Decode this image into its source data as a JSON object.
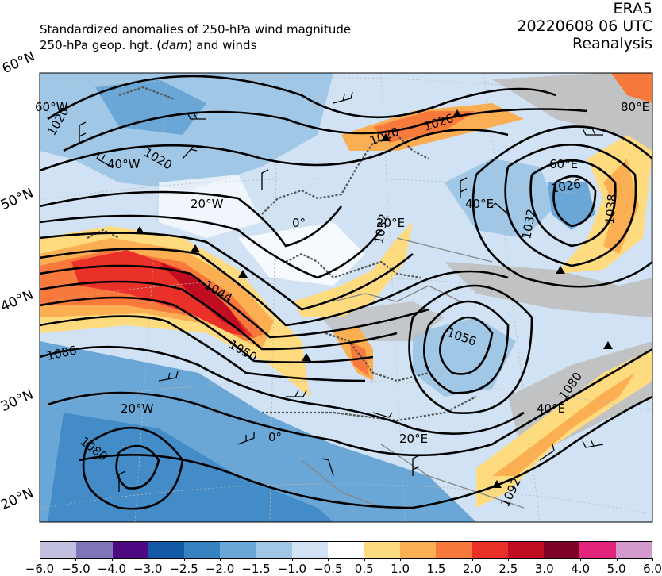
{
  "header": {
    "title_line1": "Standardized anomalies of 250-hPa wind magnitude",
    "title_line2_pre": "250-hPa geop. hgt. (",
    "title_line2_unit": "dam",
    "title_line2_post": ") and winds",
    "dataset": "ERA5",
    "datetime": "20220608 06 UTC",
    "product": "Reanalysis"
  },
  "map": {
    "lat_labels": [
      "60°N",
      "50°N",
      "40°N",
      "30°N",
      "20°N"
    ],
    "grid_labels": [
      "60°W",
      "40°W",
      "20°W",
      "0°",
      "20°E",
      "40°E",
      "60°E",
      "80°E",
      "20°W",
      "0°",
      "20°E",
      "40°E"
    ],
    "contour_labels": [
      "1020",
      "1026",
      "1020",
      "1020",
      "1026",
      "1032",
      "1038",
      "1032",
      "1044",
      "1050",
      "1056",
      "1080",
      "1086",
      "1080",
      "1092"
    ]
  },
  "colorbar": {
    "colors": [
      "#c2c0df",
      "#8073b8",
      "#4d0a82",
      "#1358a4",
      "#3783c1",
      "#6aa7d6",
      "#a0c7e6",
      "#d0e2f3",
      "#ffffff",
      "#fedb7f",
      "#fcae52",
      "#f8793c",
      "#ea3129",
      "#c10d22",
      "#7e0225",
      "#e2247c",
      "#d59acd"
    ],
    "ticks": [
      "−6.0",
      "−5.0",
      "−4.0",
      "−3.0",
      "−2.5",
      "−2.0",
      "−1.5",
      "−1.0",
      "−0.5",
      "0.5",
      "1.0",
      "1.5",
      "2.0",
      "2.5",
      "3.0",
      "4.0",
      "5.0",
      "6.0"
    ]
  }
}
